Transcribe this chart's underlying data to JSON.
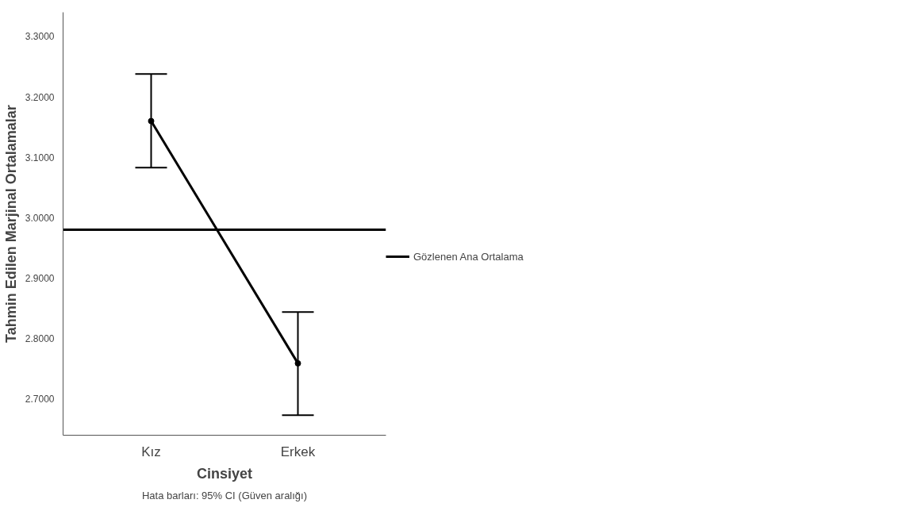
{
  "chart_data": {
    "type": "line",
    "xlabel": "Cinsiyet",
    "ylabel": "Tahmin Edilen Marjinal Ortalamalar",
    "categories": [
      "Kız",
      "Erkek"
    ],
    "series": [
      {
        "color": "#000000",
        "values": [
          3.16,
          2.759
        ],
        "errors": [
          [
            3.083,
            3.238
          ],
          [
            2.673,
            2.844
          ]
        ]
      }
    ],
    "ylim": [
      2.64,
      3.34
    ],
    "yticks": [
      {
        "value": 2.7,
        "label": "2.7000"
      },
      {
        "value": 2.8,
        "label": "2.8000"
      },
      {
        "value": 2.9,
        "label": "2.9000"
      },
      {
        "value": 3.0,
        "label": "3.0000"
      },
      {
        "value": 3.1,
        "label": "3.1000"
      },
      {
        "value": 3.2,
        "label": "3.2000"
      },
      {
        "value": 3.3,
        "label": "3.3000"
      }
    ],
    "ref_lines": [
      {
        "axis": "y",
        "value": 2.98,
        "label": "Gözlenen Ana Ortalama",
        "color": "#000000"
      }
    ],
    "annotations": [
      "Hata barları: 95% CI (Güven aralığı)"
    ],
    "legend": "right",
    "grid": false,
    "marker": "circle",
    "line_style": "solid"
  }
}
